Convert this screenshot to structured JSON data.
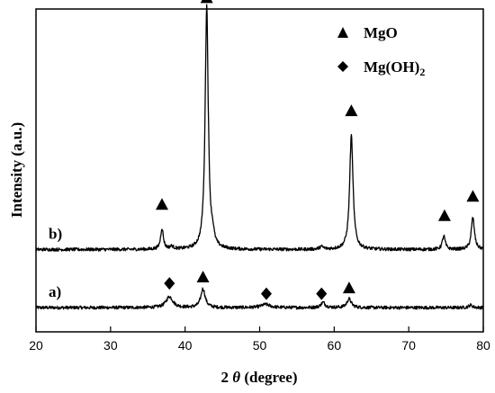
{
  "chart_data": {
    "type": "line",
    "title": "",
    "xlabel_prefix": "2",
    "xlabel_theta": "θ",
    "xlabel_suffix": " (degree)",
    "ylabel": "Intensity (a.u.)",
    "xlim": [
      20,
      80
    ],
    "ylim": [
      0,
      100
    ],
    "xticks": [
      20,
      30,
      40,
      50,
      60,
      70,
      80
    ],
    "yticks_shown": false,
    "grid": false,
    "legend_position": "top-right",
    "legend": [
      {
        "symbol": "triangle",
        "label_main": "MgO",
        "label_sub": ""
      },
      {
        "symbol": "diamond",
        "label_main": "Mg(OH)",
        "label_sub": "2"
      }
    ],
    "series": [
      {
        "name": "a)",
        "baseline": 7.5,
        "peaks": [
          {
            "x": 37.9,
            "height": 3.4,
            "width": 0.55
          },
          {
            "x": 42.4,
            "height": 5.8,
            "width": 0.35
          },
          {
            "x": 50.8,
            "height": 1.0,
            "width": 0.7
          },
          {
            "x": 58.5,
            "height": 1.6,
            "width": 0.35
          },
          {
            "x": 62.0,
            "height": 2.7,
            "width": 0.35
          },
          {
            "x": 78.3,
            "height": 0.8,
            "width": 0.3
          }
        ],
        "markers": [
          {
            "x": 37.9,
            "y": 15.0,
            "symbol": "diamond"
          },
          {
            "x": 42.4,
            "y": 17.0,
            "symbol": "triangle"
          },
          {
            "x": 50.9,
            "y": 11.8,
            "symbol": "diamond"
          },
          {
            "x": 58.3,
            "y": 11.8,
            "symbol": "diamond"
          },
          {
            "x": 62.0,
            "y": 13.6,
            "symbol": "triangle"
          }
        ]
      },
      {
        "name": "b)",
        "baseline": 25.5,
        "peaks": [
          {
            "x": 36.9,
            "height": 6.5,
            "width": 0.22
          },
          {
            "x": 38.2,
            "height": 0.8,
            "width": 0.3
          },
          {
            "x": 42.9,
            "height": 75.5,
            "width": 0.25
          },
          {
            "x": 43.7,
            "height": 3.0,
            "width": 0.22
          },
          {
            "x": 58.3,
            "height": 0.8,
            "width": 0.3
          },
          {
            "x": 62.3,
            "height": 35.5,
            "width": 0.27
          },
          {
            "x": 74.7,
            "height": 4.2,
            "width": 0.23
          },
          {
            "x": 78.6,
            "height": 10.0,
            "width": 0.25
          }
        ],
        "markers": [
          {
            "x": 36.9,
            "y": 39.5,
            "symbol": "triangle"
          },
          {
            "x": 42.9,
            "y": 103.5,
            "symbol": "triangle"
          },
          {
            "x": 62.3,
            "y": 68.5,
            "symbol": "triangle"
          },
          {
            "x": 74.8,
            "y": 36.0,
            "symbol": "triangle"
          },
          {
            "x": 78.6,
            "y": 42.0,
            "symbol": "triangle"
          }
        ]
      }
    ]
  }
}
